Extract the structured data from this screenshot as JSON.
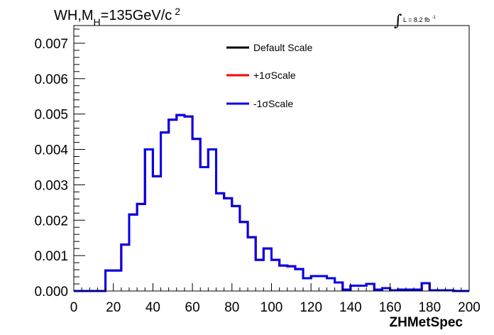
{
  "chart_data": {
    "type": "line",
    "title": {
      "prefix": "WH,M",
      "subscript": "H",
      "value": "=135GeV/c",
      "superscript": "2"
    },
    "xlabel": "ZHMetSpec",
    "ylabel": "",
    "lumi": {
      "integral_sign": "∫",
      "text": "L = 8.2 fb",
      "superscript": "-1"
    },
    "xlim": [
      0,
      200
    ],
    "ylim": [
      0,
      0.0075
    ],
    "x_ticks": [
      "0",
      "20",
      "40",
      "60",
      "80",
      "100",
      "120",
      "140",
      "160",
      "180",
      "200"
    ],
    "y_ticks": [
      "0.000",
      "0.001",
      "0.002",
      "0.003",
      "0.004",
      "0.005",
      "0.006",
      "0.007"
    ],
    "legend_position": "top-center",
    "bin_edges": [
      0,
      4,
      8,
      12,
      16,
      20,
      24,
      28,
      32,
      36,
      40,
      44,
      48,
      52,
      56,
      60,
      64,
      68,
      72,
      76,
      80,
      84,
      88,
      92,
      96,
      100,
      104,
      108,
      112,
      116,
      120,
      124,
      128,
      132,
      136,
      140,
      144,
      148,
      152,
      156,
      160,
      164,
      168,
      172,
      176,
      180,
      184,
      188,
      192,
      196,
      200
    ],
    "series": [
      {
        "name": "Default Scale",
        "color": "#000000",
        "values": [
          0,
          0,
          0,
          0,
          0.00058,
          0.00058,
          0.00131,
          0.00216,
          0.00246,
          0.004,
          0.00324,
          0.00448,
          0.00484,
          0.00497,
          0.00493,
          0.0043,
          0.0035,
          0.004,
          0.00276,
          0.00262,
          0.0024,
          0.00195,
          0.00152,
          0.00088,
          0.0012,
          0.00088,
          0.00072,
          0.0007,
          0.00062,
          0.00036,
          0.00042,
          0.00042,
          0.00036,
          0.00024,
          4e-05,
          0.00015,
          0.00015,
          0.0002,
          4e-05,
          8e-05,
          2e-05,
          4e-05,
          4e-05,
          4e-05,
          0.00022,
          2e-05,
          2e-05,
          2e-05,
          0,
          0
        ]
      },
      {
        "name": "+1σScale",
        "color": "#ff0000",
        "values": [
          0,
          0,
          0,
          0,
          0.00058,
          0.00058,
          0.00131,
          0.00216,
          0.00246,
          0.004,
          0.00324,
          0.00448,
          0.00484,
          0.00497,
          0.00493,
          0.0043,
          0.0035,
          0.004,
          0.00276,
          0.00262,
          0.0024,
          0.00195,
          0.00152,
          0.00088,
          0.0012,
          0.00088,
          0.00072,
          0.0007,
          0.00062,
          0.00036,
          0.00042,
          0.00042,
          0.00036,
          0.00024,
          4e-05,
          0.00015,
          0.00015,
          0.0002,
          4e-05,
          8e-05,
          2e-05,
          4e-05,
          4e-05,
          4e-05,
          0.00022,
          2e-05,
          2e-05,
          2e-05,
          0,
          0
        ]
      },
      {
        "name": "-1σScale",
        "color": "#0000ee",
        "values": [
          0,
          0,
          0,
          0,
          0.00058,
          0.00058,
          0.00131,
          0.00216,
          0.00246,
          0.004,
          0.00324,
          0.00448,
          0.00484,
          0.00497,
          0.00493,
          0.0043,
          0.0035,
          0.004,
          0.00276,
          0.00262,
          0.0024,
          0.00195,
          0.00152,
          0.00088,
          0.0012,
          0.00088,
          0.00072,
          0.0007,
          0.00062,
          0.00036,
          0.00042,
          0.00042,
          0.00036,
          0.00024,
          4e-05,
          0.00015,
          0.00015,
          0.0002,
          4e-05,
          8e-05,
          2e-05,
          4e-05,
          4e-05,
          4e-05,
          0.00022,
          2e-05,
          2e-05,
          2e-05,
          0,
          0
        ]
      }
    ],
    "grid": false
  }
}
